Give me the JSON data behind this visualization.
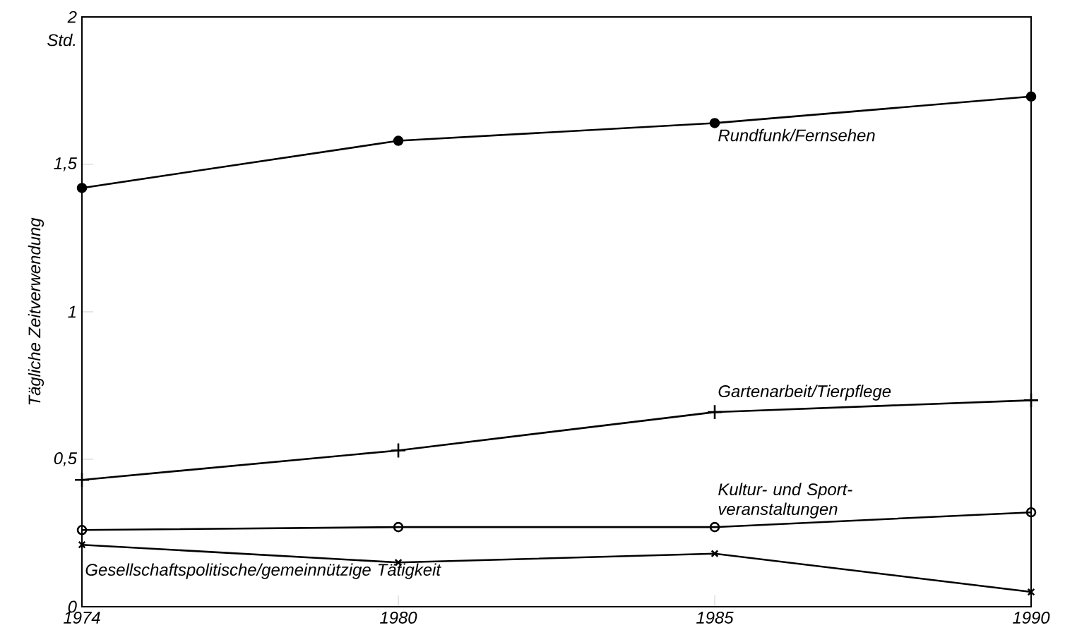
{
  "chart_data": {
    "type": "line",
    "ylabel": "Tägliche Zeitverwendung",
    "annotations": [
      "Std."
    ],
    "categories": [
      "1974",
      "1980",
      "1985",
      "1990"
    ],
    "ylim": [
      0,
      2
    ],
    "yticks": [
      0,
      {
        "value": 0.5,
        "label": "0,5"
      },
      1,
      {
        "value": 1.5,
        "label": "1,5"
      },
      2
    ],
    "grid": false,
    "legend": false,
    "line_style": "solid",
    "series": [
      {
        "name": "Rundfunk/Fernsehen",
        "color": "#000000",
        "marker": "circle",
        "values": [
          1.42,
          1.58,
          1.64,
          1.73
        ]
      },
      {
        "name": "Gartenarbeit/Tierpflege",
        "color": "#000000",
        "marker": "cross",
        "values": [
          0.43,
          0.53,
          0.66,
          0.7
        ]
      },
      {
        "name": "Kultur- und Sport-veranstaltungen",
        "color": "#000000",
        "marker": "circle_open",
        "values": [
          0.26,
          0.27,
          0.27,
          0.32
        ]
      },
      {
        "name": "Gesellschaftspolitische/gemeinnützige Tätigkeit",
        "color": "#000000",
        "marker": "x",
        "values": [
          0.21,
          0.15,
          0.18,
          0.05
        ]
      }
    ]
  }
}
